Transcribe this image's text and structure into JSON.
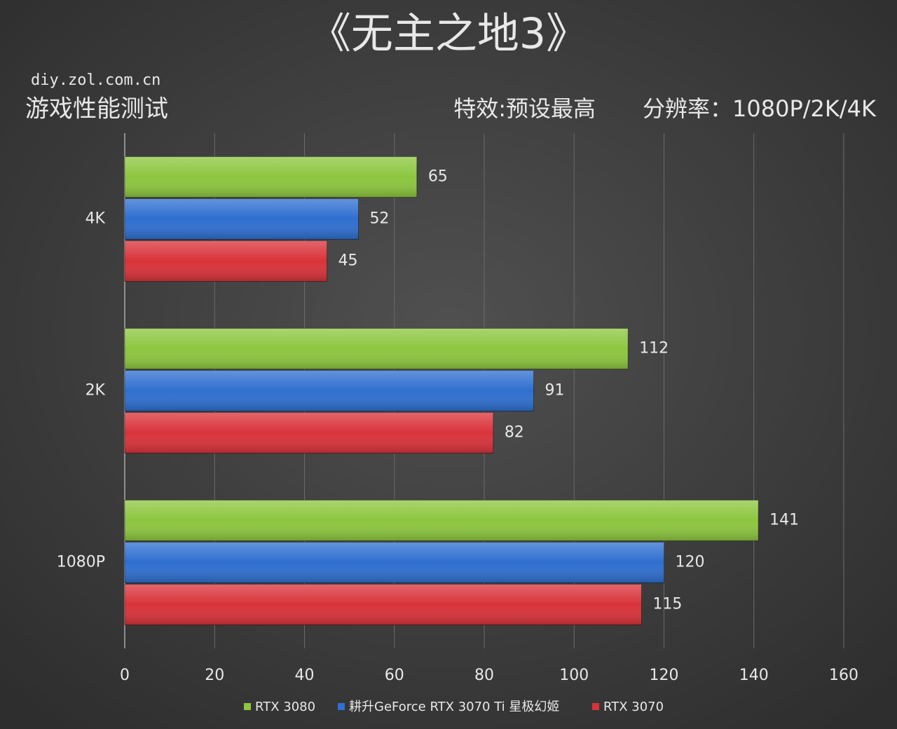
{
  "chart_data": {
    "type": "bar",
    "orientation": "horizontal",
    "title": "《无主之地3》",
    "source": "diy.zol.com.cn",
    "subtitle": "游戏性能测试",
    "settings_note": "特效:预设最高",
    "resolution_note": "分辨率：1080P/2K/4K",
    "categories": [
      "4K",
      "2K",
      "1080P"
    ],
    "series": [
      {
        "name": "RTX 3080",
        "color": "#8dc63f",
        "values": [
          65,
          112,
          141
        ]
      },
      {
        "name": "耕升GeForce RTX 3070 Ti 星极幻姬",
        "color": "#2f6fd0",
        "values": [
          52,
          91,
          120
        ]
      },
      {
        "name": "RTX 3070",
        "color": "#d9333a",
        "values": [
          45,
          82,
          115
        ]
      }
    ],
    "xlim": [
      0,
      160
    ],
    "xticks": [
      0,
      20,
      40,
      60,
      80,
      100,
      120,
      140,
      160
    ],
    "grid": true
  }
}
